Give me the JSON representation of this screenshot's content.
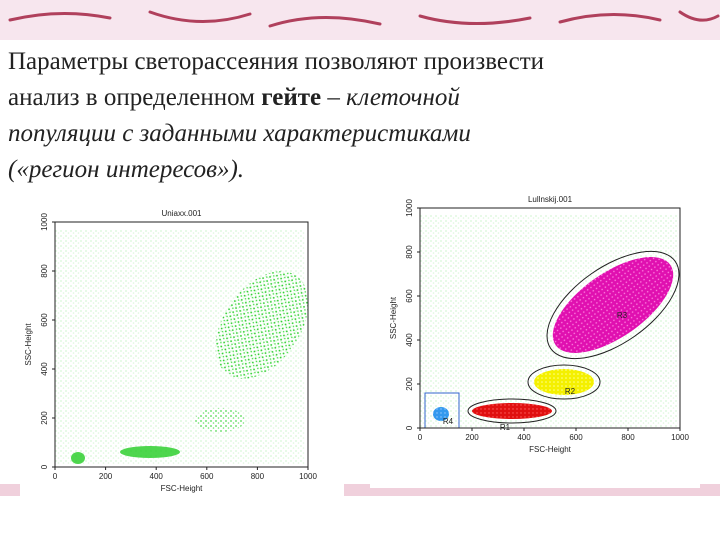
{
  "slide": {
    "lines": [
      [
        "Параметры светорассеяния позволяют произвести"
      ],
      [
        "анализ в определенном ",
        "гейте",
        " – ",
        "клеточной"
      ],
      [
        "популяции с заданными характеристиками"
      ],
      [
        "(«регион интересов»)."
      ]
    ]
  },
  "plots": [
    {
      "title": "Uniaxx.001",
      "x_label": "FSC-Height",
      "y_label": "SSC-Height",
      "x_ticks": [
        "0",
        "200",
        "400",
        "600",
        "800",
        "1000"
      ],
      "y_ticks": [
        "0",
        "200",
        "400",
        "600",
        "800",
        "1000"
      ]
    },
    {
      "title": "Lullnskij.001",
      "x_label": "FSC-Height",
      "y_label": "SSC-Height",
      "x_ticks": [
        "0",
        "200",
        "400",
        "600",
        "800",
        "1000"
      ],
      "y_ticks": [
        "0",
        "200",
        "400",
        "600",
        "800",
        "1000"
      ],
      "regions": [
        "R1",
        "R2",
        "R3",
        "R4"
      ]
    }
  ]
}
